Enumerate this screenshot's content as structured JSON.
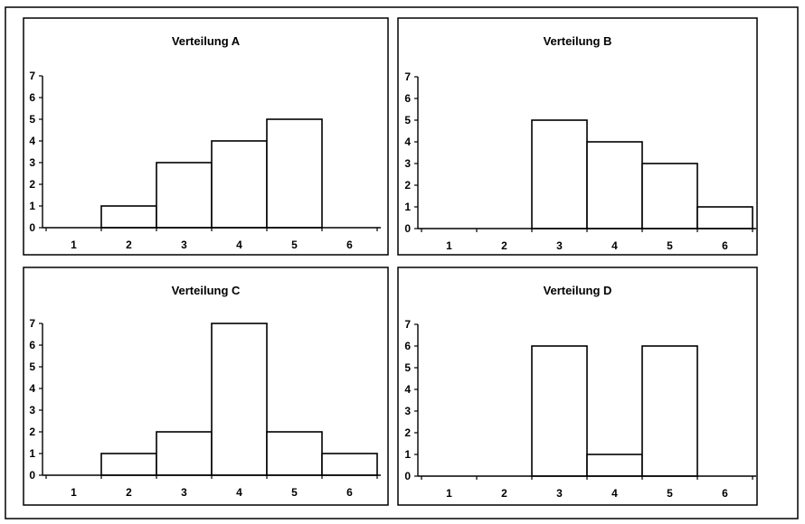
{
  "chart_data": [
    {
      "type": "bar",
      "title": "Verteilung A",
      "categories": [
        "1",
        "2",
        "3",
        "4",
        "5",
        "6"
      ],
      "values": [
        0,
        1,
        3,
        4,
        5,
        0
      ],
      "yticks": [
        "0",
        "1",
        "2",
        "3",
        "4",
        "5",
        "6",
        "7"
      ],
      "ylim": [
        0,
        7
      ],
      "grid": false,
      "legend": "none"
    },
    {
      "type": "bar",
      "title": "Verteilung B",
      "categories": [
        "1",
        "2",
        "3",
        "4",
        "5",
        "6"
      ],
      "values": [
        0,
        0,
        5,
        4,
        3,
        1
      ],
      "yticks": [
        "0",
        "1",
        "2",
        "3",
        "4",
        "5",
        "6",
        "7"
      ],
      "ylim": [
        0,
        7
      ],
      "grid": false,
      "legend": "none"
    },
    {
      "type": "bar",
      "title": "Verteilung C",
      "categories": [
        "1",
        "2",
        "3",
        "4",
        "5",
        "6"
      ],
      "values": [
        0,
        1,
        2,
        7,
        2,
        1
      ],
      "yticks": [
        "0",
        "1",
        "2",
        "3",
        "4",
        "5",
        "6",
        "7"
      ],
      "ylim": [
        0,
        7
      ],
      "grid": false,
      "legend": "none"
    },
    {
      "type": "bar",
      "title": "Verteilung D",
      "categories": [
        "1",
        "2",
        "3",
        "4",
        "5",
        "6"
      ],
      "values": [
        0,
        0,
        6,
        1,
        6,
        0
      ],
      "yticks": [
        "0",
        "1",
        "2",
        "3",
        "4",
        "5",
        "6",
        "7"
      ],
      "ylim": [
        0,
        7
      ],
      "grid": false,
      "legend": "none"
    }
  ]
}
